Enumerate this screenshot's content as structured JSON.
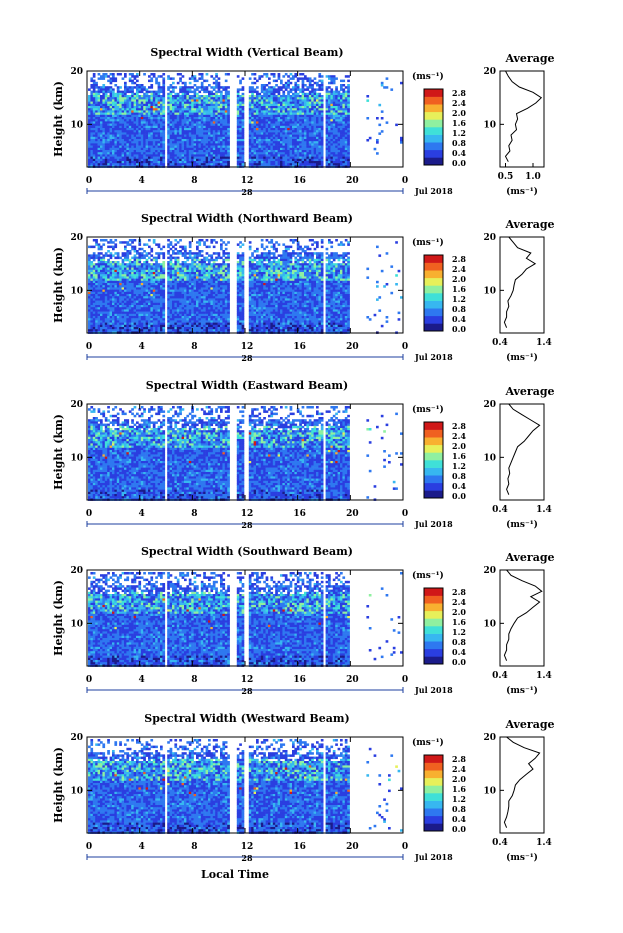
{
  "common": {
    "ylabel": "Height (km)",
    "units": "(ms⁻¹)",
    "avg_title": "Average",
    "day": "28",
    "month_label": "Jul 2018",
    "xlabel": "Local Time",
    "x_ticks": [
      "0",
      "4",
      "8",
      "12",
      "16",
      "20",
      "0"
    ],
    "y_ticks": [
      "20",
      "10"
    ],
    "cb_ticks": [
      "2.8",
      "2.4",
      "2.0",
      "1.6",
      "1.2",
      "0.8",
      "0.4",
      "0.0"
    ],
    "colors": [
      "#1b1b8a",
      "#2a3ee0",
      "#2e78f0",
      "#37b7f0",
      "#3fe0d8",
      "#8ff0a0",
      "#e7f05a",
      "#f8b030",
      "#f06020",
      "#d01818"
    ]
  },
  "chart_data": [
    {
      "type": "heatmap",
      "title": "Spectral Width (Vertical Beam)",
      "x_range_hours": [
        0,
        24
      ],
      "y_range_km": [
        2,
        20
      ],
      "colorbar_range": [
        0.0,
        3.0
      ],
      "data_gaps_hours": [
        [
          5.8,
          6.0
        ],
        [
          10.8,
          11.2
        ],
        [
          11.8,
          12.2
        ],
        [
          17.8,
          18.0
        ],
        [
          19.8,
          21.2
        ],
        [
          21.5,
          21.6
        ],
        [
          22.0,
          22.1
        ]
      ],
      "high_values": "enhanced widths near 14-16 km and around 9 km at 14-16 LT",
      "average_profile": {
        "xlabel": "(ms⁻¹)",
        "x_ticks": [
          "0.5",
          "1.0"
        ],
        "x_range": [
          0.4,
          1.2
        ],
        "height_km": [
          3,
          4,
          5,
          6,
          7,
          8,
          9,
          10,
          11,
          12,
          13,
          14,
          15,
          16,
          17,
          18,
          19,
          20
        ],
        "value": [
          0.55,
          0.5,
          0.58,
          0.56,
          0.62,
          0.6,
          0.7,
          0.68,
          0.72,
          0.7,
          0.9,
          1.05,
          1.15,
          1.0,
          0.75,
          0.62,
          0.55,
          0.5
        ]
      }
    },
    {
      "type": "heatmap",
      "title": "Spectral Width (Northward Beam)",
      "x_range_hours": [
        0,
        24
      ],
      "y_range_km": [
        2,
        20
      ],
      "colorbar_range": [
        0.0,
        3.0
      ],
      "data_gaps_hours": [
        [
          5.8,
          6.0
        ],
        [
          10.8,
          11.2
        ],
        [
          11.8,
          12.2
        ],
        [
          17.8,
          18.0
        ],
        [
          19.8,
          21.2
        ],
        [
          21.5,
          21.6
        ],
        [
          22.0,
          22.1
        ]
      ],
      "high_values": "enhanced widths near 11-13 km around 10 LT",
      "average_profile": {
        "xlabel": "(ms⁻¹)",
        "x_ticks": [
          "0.4",
          "1.4"
        ],
        "x_range": [
          0.4,
          1.4
        ],
        "height_km": [
          3,
          4,
          5,
          6,
          7,
          8,
          9,
          10,
          11,
          12,
          13,
          14,
          15,
          16,
          17,
          18,
          19,
          20
        ],
        "value": [
          0.55,
          0.5,
          0.55,
          0.55,
          0.6,
          0.58,
          0.65,
          0.7,
          0.72,
          0.75,
          0.9,
          1.0,
          1.2,
          1.0,
          1.1,
          0.8,
          0.7,
          0.6
        ]
      }
    },
    {
      "type": "heatmap",
      "title": "Spectral Width (Eastward Beam)",
      "x_range_hours": [
        0,
        24
      ],
      "y_range_km": [
        2,
        20
      ],
      "colorbar_range": [
        0.0,
        3.0
      ],
      "data_gaps_hours": [
        [
          5.8,
          6.0
        ],
        [
          10.8,
          11.2
        ],
        [
          11.8,
          12.2
        ],
        [
          17.8,
          18.0
        ],
        [
          19.8,
          21.2
        ],
        [
          21.5,
          21.6
        ],
        [
          22.0,
          22.1
        ]
      ],
      "high_values": "enhanced widths near 12-14 km",
      "average_profile": {
        "xlabel": "(ms⁻¹)",
        "x_ticks": [
          "0.4",
          "1.4"
        ],
        "x_range": [
          0.4,
          1.4
        ],
        "height_km": [
          3,
          4,
          5,
          6,
          7,
          8,
          9,
          10,
          11,
          12,
          13,
          14,
          15,
          16,
          17,
          18,
          19,
          20
        ],
        "value": [
          0.6,
          0.55,
          0.6,
          0.58,
          0.62,
          0.6,
          0.65,
          0.7,
          0.75,
          0.8,
          0.95,
          1.05,
          1.15,
          1.3,
          1.1,
          0.9,
          0.7,
          0.6
        ]
      }
    },
    {
      "type": "heatmap",
      "title": "Spectral Width (Southward Beam)",
      "x_range_hours": [
        0,
        24
      ],
      "y_range_km": [
        2,
        20
      ],
      "colorbar_range": [
        0.0,
        3.0
      ],
      "data_gaps_hours": [
        [
          5.8,
          6.0
        ],
        [
          10.8,
          11.2
        ],
        [
          11.8,
          12.2
        ],
        [
          17.8,
          18.0
        ],
        [
          19.8,
          21.2
        ],
        [
          21.5,
          21.6
        ],
        [
          22.0,
          22.1
        ]
      ],
      "high_values": "enhanced widths near 11-14 km around 10 LT and 14 LT",
      "average_profile": {
        "xlabel": "(ms⁻¹)",
        "x_ticks": [
          "0.4",
          "1.4"
        ],
        "x_range": [
          0.4,
          1.4
        ],
        "height_km": [
          3,
          4,
          5,
          6,
          7,
          8,
          9,
          10,
          11,
          12,
          13,
          14,
          15,
          16,
          17,
          18,
          19,
          20
        ],
        "value": [
          0.55,
          0.5,
          0.55,
          0.55,
          0.6,
          0.6,
          0.65,
          0.72,
          0.8,
          1.0,
          1.15,
          1.3,
          1.1,
          1.35,
          1.2,
          0.9,
          0.65,
          0.55
        ]
      }
    },
    {
      "type": "heatmap",
      "title": "Spectral Width (Westward Beam)",
      "x_range_hours": [
        0,
        24
      ],
      "y_range_km": [
        2,
        20
      ],
      "colorbar_range": [
        0.0,
        3.0
      ],
      "data_gaps_hours": [
        [
          5.8,
          6.0
        ],
        [
          10.8,
          11.2
        ],
        [
          11.8,
          12.2
        ],
        [
          17.8,
          18.0
        ],
        [
          19.8,
          21.2
        ],
        [
          21.5,
          21.6
        ],
        [
          22.0,
          22.1
        ]
      ],
      "high_values": "enhanced widths near 10-13 km around 17 LT",
      "average_profile": {
        "xlabel": "(ms⁻¹)",
        "x_ticks": [
          "0.4",
          "1.4"
        ],
        "x_range": [
          0.4,
          1.4
        ],
        "height_km": [
          3,
          4,
          5,
          6,
          7,
          8,
          9,
          10,
          11,
          12,
          13,
          14,
          15,
          16,
          17,
          18,
          19,
          20
        ],
        "value": [
          0.55,
          0.5,
          0.55,
          0.58,
          0.6,
          0.6,
          0.68,
          0.72,
          0.75,
          0.85,
          1.0,
          1.15,
          1.05,
          1.2,
          1.3,
          0.95,
          0.7,
          0.55
        ]
      }
    }
  ]
}
